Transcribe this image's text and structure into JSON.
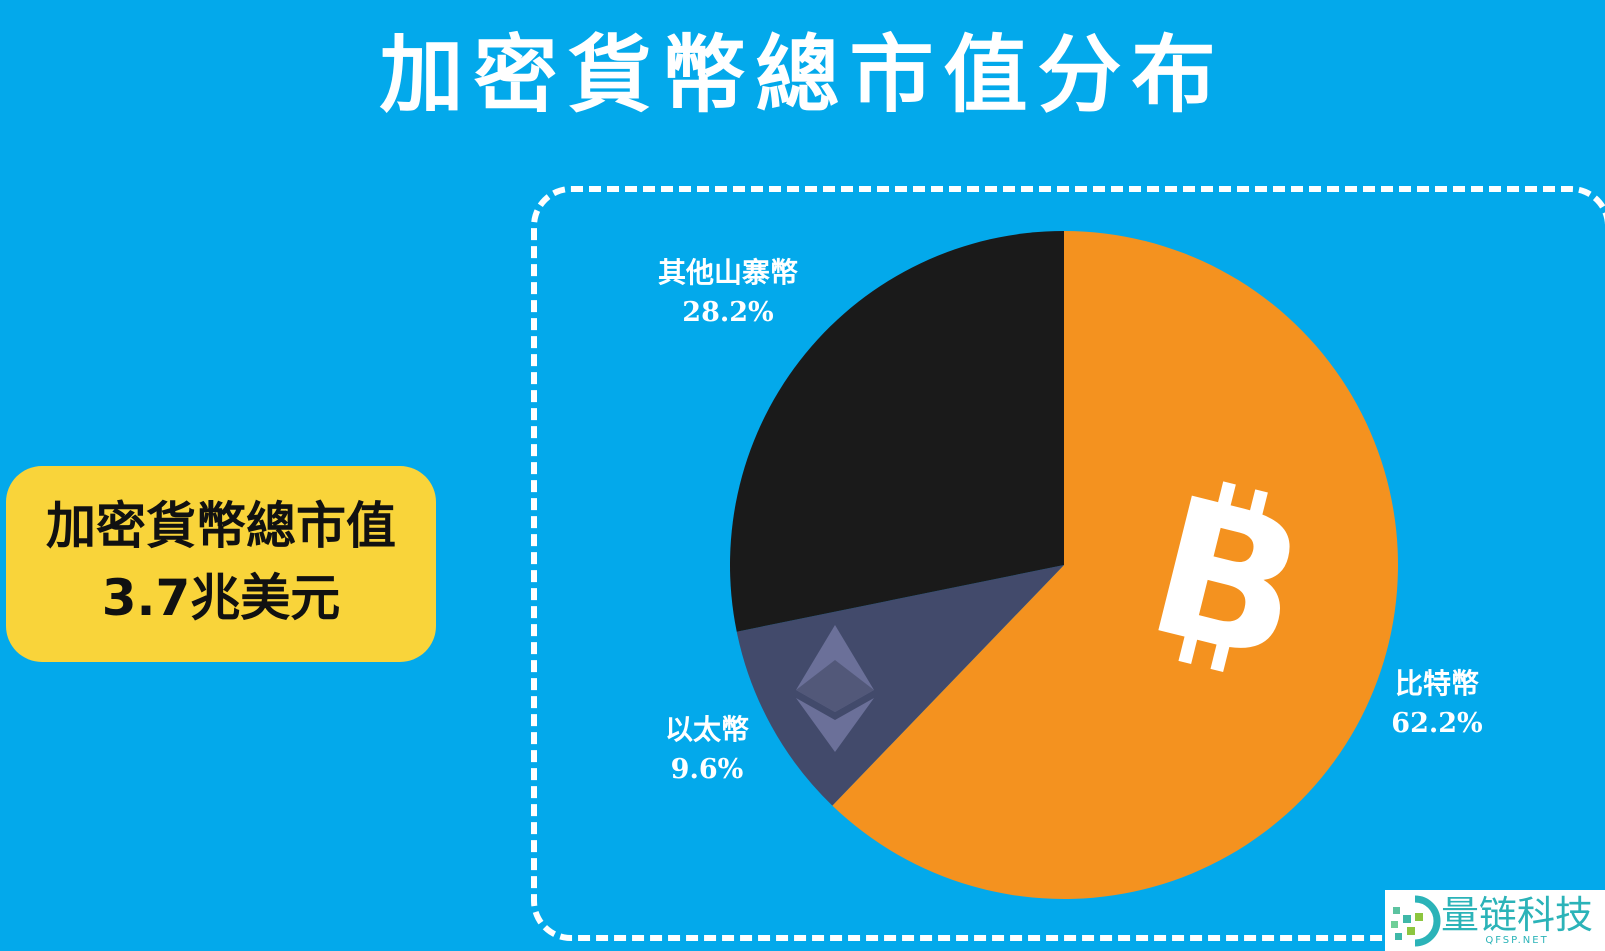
{
  "title": "加密貨幣總市值分布",
  "total": {
    "label": "加密貨幣總市值",
    "value": "3.7兆美元"
  },
  "chart_data": {
    "type": "pie",
    "title": "加密貨幣總市值分布",
    "start_angle": "12 o'clock, clockwise",
    "categories": [
      "比特幣",
      "以太幣",
      "其他山寨幣"
    ],
    "values": [
      62.2,
      9.6,
      28.2
    ],
    "labels": [
      "62.2%",
      "9.6%",
      "28.2%"
    ],
    "colors": [
      "#f4921f",
      "#424a6b",
      "#1a1a1a"
    ],
    "icons": [
      "bitcoin-icon",
      "ethereum-icon",
      null
    ]
  },
  "watermark": {
    "name": "量链科技",
    "url": "QFSP.NET"
  },
  "colors": {
    "background": "#03a9eb",
    "total_box": "#f9d43a"
  }
}
